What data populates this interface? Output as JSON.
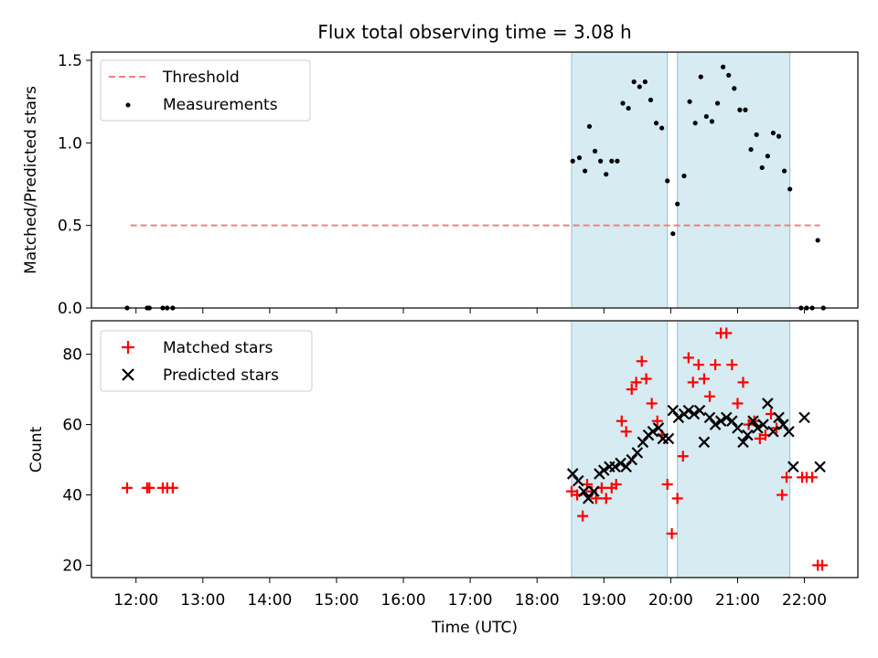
{
  "chart_data": [
    {
      "type": "scatter",
      "title": "Flux total observing time = 3.08 h",
      "xlabel": "",
      "ylabel": "Matched/Predicted stars",
      "ylim": [
        0,
        1.55
      ],
      "yticks": [
        "0.0",
        "0.5",
        "1.0",
        "1.5"
      ],
      "ytick_values": [
        0,
        0.5,
        1.0,
        1.5
      ],
      "legend_position": "upper-left",
      "shaded_intervals": [
        {
          "start": "18:31",
          "end": "19:57"
        },
        {
          "start": "20:06",
          "end": "21:47"
        }
      ],
      "threshold": {
        "name": "Threshold",
        "value": 0.5,
        "x_start": "11:55",
        "x_end": "22:14",
        "color": "#f08080"
      },
      "series": [
        {
          "name": "Measurements",
          "color": "#000000",
          "marker": "dot",
          "points": [
            [
              "11:52",
              0
            ],
            [
              "12:10",
              0
            ],
            [
              "12:12",
              0
            ],
            [
              "12:24",
              0
            ],
            [
              "12:28",
              0
            ],
            [
              "12:33",
              0
            ],
            [
              "18:32",
              0.89
            ],
            [
              "18:38",
              0.91
            ],
            [
              "18:43",
              0.83
            ],
            [
              "18:47",
              1.1
            ],
            [
              "18:52",
              0.95
            ],
            [
              "18:57",
              0.89
            ],
            [
              "19:02",
              0.81
            ],
            [
              "19:07",
              0.89
            ],
            [
              "19:12",
              0.89
            ],
            [
              "19:17",
              1.24
            ],
            [
              "19:22",
              1.21
            ],
            [
              "19:27",
              1.37
            ],
            [
              "19:32",
              1.34
            ],
            [
              "19:37",
              1.37
            ],
            [
              "19:42",
              1.26
            ],
            [
              "19:47",
              1.12
            ],
            [
              "19:52",
              1.09
            ],
            [
              "19:57",
              0.77
            ],
            [
              "20:02",
              0.45
            ],
            [
              "20:06",
              0.63
            ],
            [
              "20:12",
              0.8
            ],
            [
              "20:17",
              1.25
            ],
            [
              "20:22",
              1.12
            ],
            [
              "20:27",
              1.4
            ],
            [
              "20:32",
              1.16
            ],
            [
              "20:37",
              1.13
            ],
            [
              "20:42",
              1.24
            ],
            [
              "20:47",
              1.46
            ],
            [
              "20:52",
              1.41
            ],
            [
              "20:57",
              1.33
            ],
            [
              "21:02",
              1.2
            ],
            [
              "21:07",
              1.2
            ],
            [
              "21:12",
              0.96
            ],
            [
              "21:17",
              1.05
            ],
            [
              "21:22",
              0.85
            ],
            [
              "21:27",
              0.92
            ],
            [
              "21:32",
              1.06
            ],
            [
              "21:37",
              1.04
            ],
            [
              "21:42",
              0.83
            ],
            [
              "21:47",
              0.72
            ],
            [
              "21:57",
              0
            ],
            [
              "22:02",
              0
            ],
            [
              "22:07",
              0
            ],
            [
              "22:12",
              0.41
            ],
            [
              "22:17",
              0
            ]
          ]
        }
      ]
    },
    {
      "type": "scatter",
      "title": "",
      "xlabel": "Time (UTC)",
      "ylabel": "Count",
      "ylim": [
        16.5,
        89.5
      ],
      "yticks": [
        "20",
        "40",
        "60",
        "80"
      ],
      "ytick_values": [
        20,
        40,
        60,
        80
      ],
      "xlim": [
        "11:20",
        "22:48"
      ],
      "xticks": [
        "12:00",
        "13:00",
        "14:00",
        "15:00",
        "16:00",
        "17:00",
        "18:00",
        "19:00",
        "20:00",
        "21:00",
        "22:00"
      ],
      "legend_position": "upper-left",
      "shaded_intervals": [
        {
          "start": "18:31",
          "end": "19:57"
        },
        {
          "start": "20:06",
          "end": "21:47"
        }
      ],
      "series": [
        {
          "name": "Matched stars",
          "color": "#ff0000",
          "marker": "plus",
          "points": [
            [
              "11:52",
              42
            ],
            [
              "12:10",
              42
            ],
            [
              "12:12",
              42
            ],
            [
              "12:24",
              42
            ],
            [
              "12:28",
              42
            ],
            [
              "12:33",
              42
            ],
            [
              "18:31",
              41
            ],
            [
              "18:36",
              40
            ],
            [
              "18:41",
              34
            ],
            [
              "18:45",
              43
            ],
            [
              "18:49",
              41
            ],
            [
              "18:53",
              39
            ],
            [
              "18:58",
              42
            ],
            [
              "19:02",
              39
            ],
            [
              "19:07",
              42
            ],
            [
              "19:11",
              43
            ],
            [
              "19:16",
              61
            ],
            [
              "19:20",
              58
            ],
            [
              "19:25",
              70
            ],
            [
              "19:29",
              72
            ],
            [
              "19:34",
              78
            ],
            [
              "19:38",
              73
            ],
            [
              "19:43",
              66
            ],
            [
              "19:48",
              61
            ],
            [
              "19:52",
              57
            ],
            [
              "19:57",
              43
            ],
            [
              "20:01",
              29
            ],
            [
              "20:06",
              39
            ],
            [
              "20:11",
              51
            ],
            [
              "20:16",
              79
            ],
            [
              "20:20",
              72
            ],
            [
              "20:25",
              77
            ],
            [
              "20:30",
              73
            ],
            [
              "20:35",
              68
            ],
            [
              "20:40",
              77
            ],
            [
              "20:45",
              86
            ],
            [
              "20:50",
              86
            ],
            [
              "20:55",
              77
            ],
            [
              "21:00",
              66
            ],
            [
              "21:05",
              72
            ],
            [
              "21:10",
              60
            ],
            [
              "21:15",
              61
            ],
            [
              "21:20",
              56
            ],
            [
              "21:25",
              57
            ],
            [
              "21:30",
              63
            ],
            [
              "21:35",
              59
            ],
            [
              "21:40",
              40
            ],
            [
              "21:44",
              45
            ],
            [
              "21:58",
              45
            ],
            [
              "22:02",
              45
            ],
            [
              "22:07",
              45
            ],
            [
              "22:12",
              20
            ],
            [
              "22:16",
              20
            ]
          ]
        },
        {
          "name": "Predicted stars",
          "color": "#000000",
          "marker": "x",
          "points": [
            [
              "18:32",
              46
            ],
            [
              "18:37",
              44
            ],
            [
              "18:42",
              41
            ],
            [
              "18:46",
              39
            ],
            [
              "18:51",
              41
            ],
            [
              "18:56",
              46
            ],
            [
              "19:00",
              47
            ],
            [
              "19:05",
              48
            ],
            [
              "19:10",
              48
            ],
            [
              "19:15",
              49
            ],
            [
              "19:20",
              48
            ],
            [
              "19:25",
              50
            ],
            [
              "19:30",
              52
            ],
            [
              "19:35",
              55
            ],
            [
              "19:40",
              57
            ],
            [
              "19:44",
              58
            ],
            [
              "19:49",
              59
            ],
            [
              "19:53",
              56
            ],
            [
              "19:58",
              56
            ],
            [
              "20:02",
              64
            ],
            [
              "20:07",
              62
            ],
            [
              "20:12",
              63
            ],
            [
              "20:16",
              64
            ],
            [
              "20:21",
              63
            ],
            [
              "20:26",
              64
            ],
            [
              "20:30",
              55
            ],
            [
              "20:35",
              62
            ],
            [
              "20:40",
              60
            ],
            [
              "20:45",
              61
            ],
            [
              "20:50",
              62
            ],
            [
              "20:55",
              61
            ],
            [
              "21:00",
              59
            ],
            [
              "21:05",
              55
            ],
            [
              "21:09",
              57
            ],
            [
              "21:14",
              61
            ],
            [
              "21:18",
              59
            ],
            [
              "21:23",
              60
            ],
            [
              "21:27",
              66
            ],
            [
              "21:32",
              58
            ],
            [
              "21:37",
              62
            ],
            [
              "21:41",
              60
            ],
            [
              "21:46",
              58
            ],
            [
              "21:50",
              48
            ],
            [
              "22:00",
              62
            ],
            [
              "22:14",
              48
            ]
          ]
        }
      ]
    }
  ]
}
